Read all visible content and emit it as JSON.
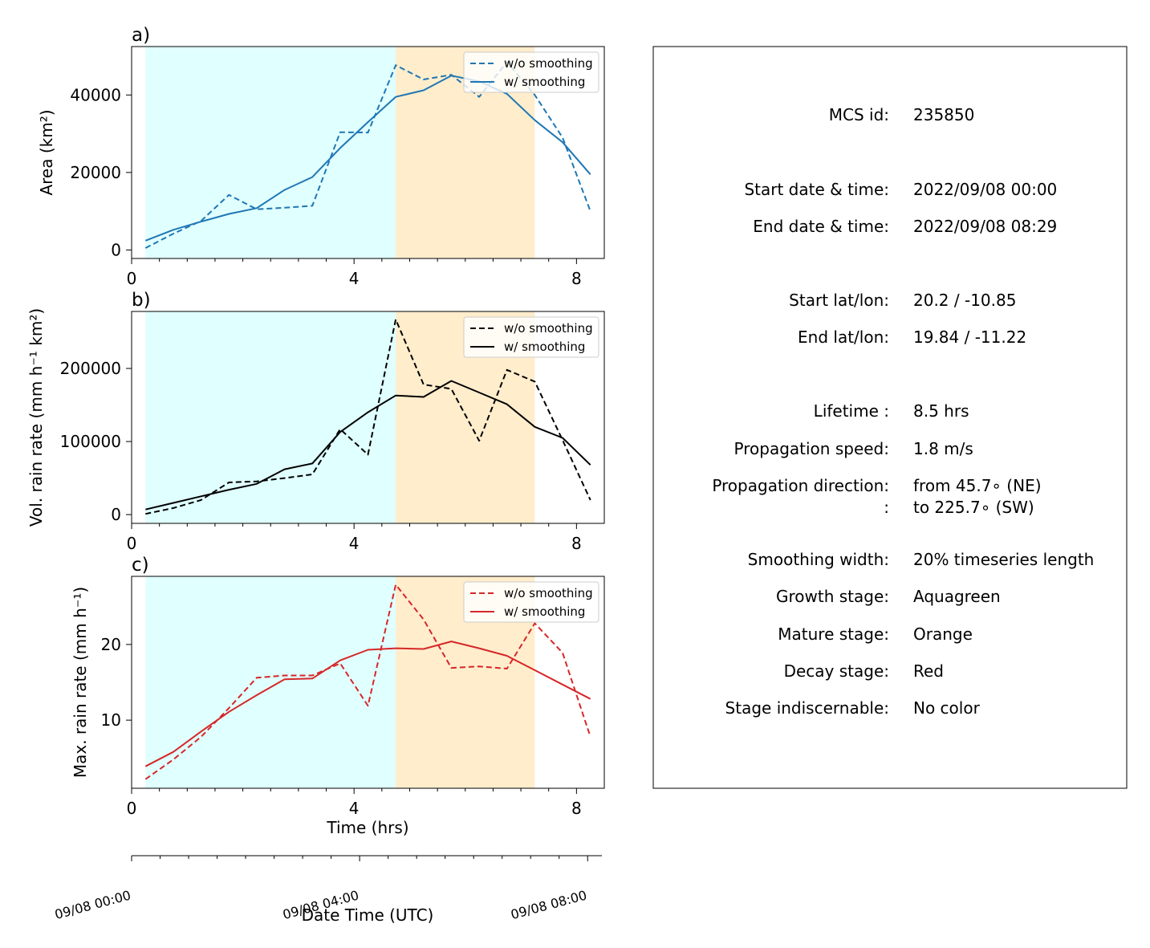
{
  "colors": {
    "growth": "#e0ffff",
    "mature": "#ffedcc",
    "blue": "#1f77b4",
    "black": "#000000",
    "red": "#d62728"
  },
  "chart_data": [
    {
      "type": "line",
      "panel_label": "a)",
      "ylabel": "Area  (km²)",
      "xlim": [
        0,
        8.5
      ],
      "ylim": [
        -2200,
        52500
      ],
      "xticks": [
        0,
        4,
        8
      ],
      "yticks": [
        0,
        20000,
        40000
      ],
      "color": "#1f77b4",
      "stages": [
        {
          "name": "growth",
          "x": [
            0.25,
            4.75
          ]
        },
        {
          "name": "mature",
          "x": [
            4.75,
            7.25
          ]
        }
      ],
      "legend": {
        "position": "top-right",
        "dashed": "w/o smoothing",
        "solid": "w/ smoothing"
      },
      "x": [
        0.25,
        0.75,
        1.25,
        1.75,
        2.25,
        2.75,
        3.25,
        3.75,
        4.25,
        4.75,
        5.25,
        5.75,
        6.25,
        6.75,
        7.25,
        7.75,
        8.25
      ],
      "series": [
        {
          "name": "w/o smoothing",
          "style": "dashed",
          "values": [
            500,
            4200,
            7500,
            14200,
            10500,
            10900,
            11400,
            30400,
            30300,
            47700,
            44000,
            45200,
            39500,
            48500,
            40000,
            29000,
            10000
          ]
        },
        {
          "name": "w/ smoothing",
          "style": "solid",
          "values": [
            2400,
            5200,
            7300,
            9300,
            10800,
            15500,
            18800,
            26300,
            33000,
            39500,
            41200,
            45000,
            43500,
            40300,
            33500,
            27800,
            19500
          ]
        }
      ]
    },
    {
      "type": "line",
      "panel_label": "b)",
      "ylabel": "Vol. rain rate (mm h⁻¹ km²)",
      "xlim": [
        0,
        8.5
      ],
      "ylim": [
        -12000,
        278000
      ],
      "xticks": [
        0,
        4,
        8
      ],
      "yticks": [
        0,
        100000,
        200000
      ],
      "color": "#000000",
      "stages": [
        {
          "name": "growth",
          "x": [
            0.25,
            4.75
          ]
        },
        {
          "name": "mature",
          "x": [
            4.75,
            7.25
          ]
        }
      ],
      "legend": {
        "position": "top-right",
        "dashed": "w/o smoothing",
        "solid": "w/ smoothing"
      },
      "x": [
        0.25,
        0.75,
        1.25,
        1.75,
        2.25,
        2.75,
        3.25,
        3.75,
        4.25,
        4.75,
        5.25,
        5.75,
        6.25,
        6.75,
        7.25,
        7.75,
        8.25
      ],
      "series": [
        {
          "name": "w/o smoothing",
          "style": "dashed",
          "values": [
            1000,
            9000,
            20000,
            44000,
            45500,
            50000,
            55000,
            117000,
            82000,
            267000,
            178000,
            172000,
            101000,
            198000,
            182000,
            102000,
            20000
          ]
        },
        {
          "name": "w/ smoothing",
          "style": "solid",
          "values": [
            7000,
            16000,
            25000,
            34000,
            42000,
            62000,
            70000,
            113000,
            140000,
            163000,
            161000,
            183000,
            167000,
            151000,
            120000,
            105000,
            68000
          ]
        }
      ]
    },
    {
      "type": "line",
      "panel_label": "c)",
      "ylabel": "Max. rain rate  (mm h⁻¹)",
      "xlabel": "Time (hrs)",
      "xlim": [
        0,
        8.5
      ],
      "ylim": [
        1.0,
        29.0
      ],
      "xticks": [
        0,
        4,
        8
      ],
      "yticks": [
        10,
        20
      ],
      "color": "#d62728",
      "stages": [
        {
          "name": "growth",
          "x": [
            0.25,
            4.75
          ]
        },
        {
          "name": "mature",
          "x": [
            4.75,
            7.25
          ]
        }
      ],
      "legend": {
        "position": "top-right",
        "dashed": "w/o smoothing",
        "solid": "w/ smoothing"
      },
      "x": [
        0.25,
        0.75,
        1.25,
        1.75,
        2.25,
        2.75,
        3.25,
        3.75,
        4.25,
        4.75,
        5.25,
        5.75,
        6.25,
        6.75,
        7.25,
        7.75,
        8.25
      ],
      "series": [
        {
          "name": "w/o smoothing",
          "style": "dashed",
          "values": [
            2.2,
            4.8,
            7.8,
            11.6,
            15.6,
            15.9,
            15.9,
            17.5,
            11.9,
            27.9,
            23.3,
            16.9,
            17.1,
            16.8,
            22.8,
            18.9,
            7.8
          ]
        },
        {
          "name": "w/ smoothing",
          "style": "solid",
          "values": [
            3.9,
            5.8,
            8.5,
            11.1,
            13.3,
            15.4,
            15.5,
            17.9,
            19.3,
            19.5,
            19.4,
            20.4,
            19.5,
            18.5,
            16.6,
            14.7,
            12.8
          ]
        }
      ]
    }
  ],
  "date_axis": {
    "label": "Date Time (UTC)",
    "ticks": [
      {
        "hours": 0,
        "label": "09/08 00:00"
      },
      {
        "hours": 4,
        "label": "09/08 04:00"
      },
      {
        "hours": 8,
        "label": "09/08 08:00"
      }
    ]
  },
  "info": {
    "mcs_id_label": "MCS id:",
    "mcs_id": "235850",
    "start_time_label": "Start date & time:",
    "start_time": "2022/09/08 00:00",
    "end_time_label": "End date & time:",
    "end_time": "2022/09/08 08:29",
    "start_latlon_label": "Start lat/lon:",
    "start_latlon": "20.2 / -10.85",
    "end_latlon_label": "End lat/lon:",
    "end_latlon": "19.84 / -11.22",
    "lifetime_label": "Lifetime :",
    "lifetime": "8.5 hrs",
    "speed_label": "Propagation speed:",
    "speed": "1.8 m/s",
    "direction_label": "Propagation direction:",
    "direction_from": "from  45.7∘ (NE)",
    "direction_label2": ":",
    "direction_to": "to   225.7∘ (SW)",
    "smoothing_label": "Smoothing width:",
    "smoothing": "20% timeseries length",
    "growth_label": "Growth stage:",
    "growth": "Aquagreen",
    "mature_label": "Mature stage:",
    "mature": "Orange",
    "decay_label": "Decay stage:",
    "decay": "Red",
    "indiscernable_label": "Stage indiscernable:",
    "indiscernable": "No color"
  }
}
